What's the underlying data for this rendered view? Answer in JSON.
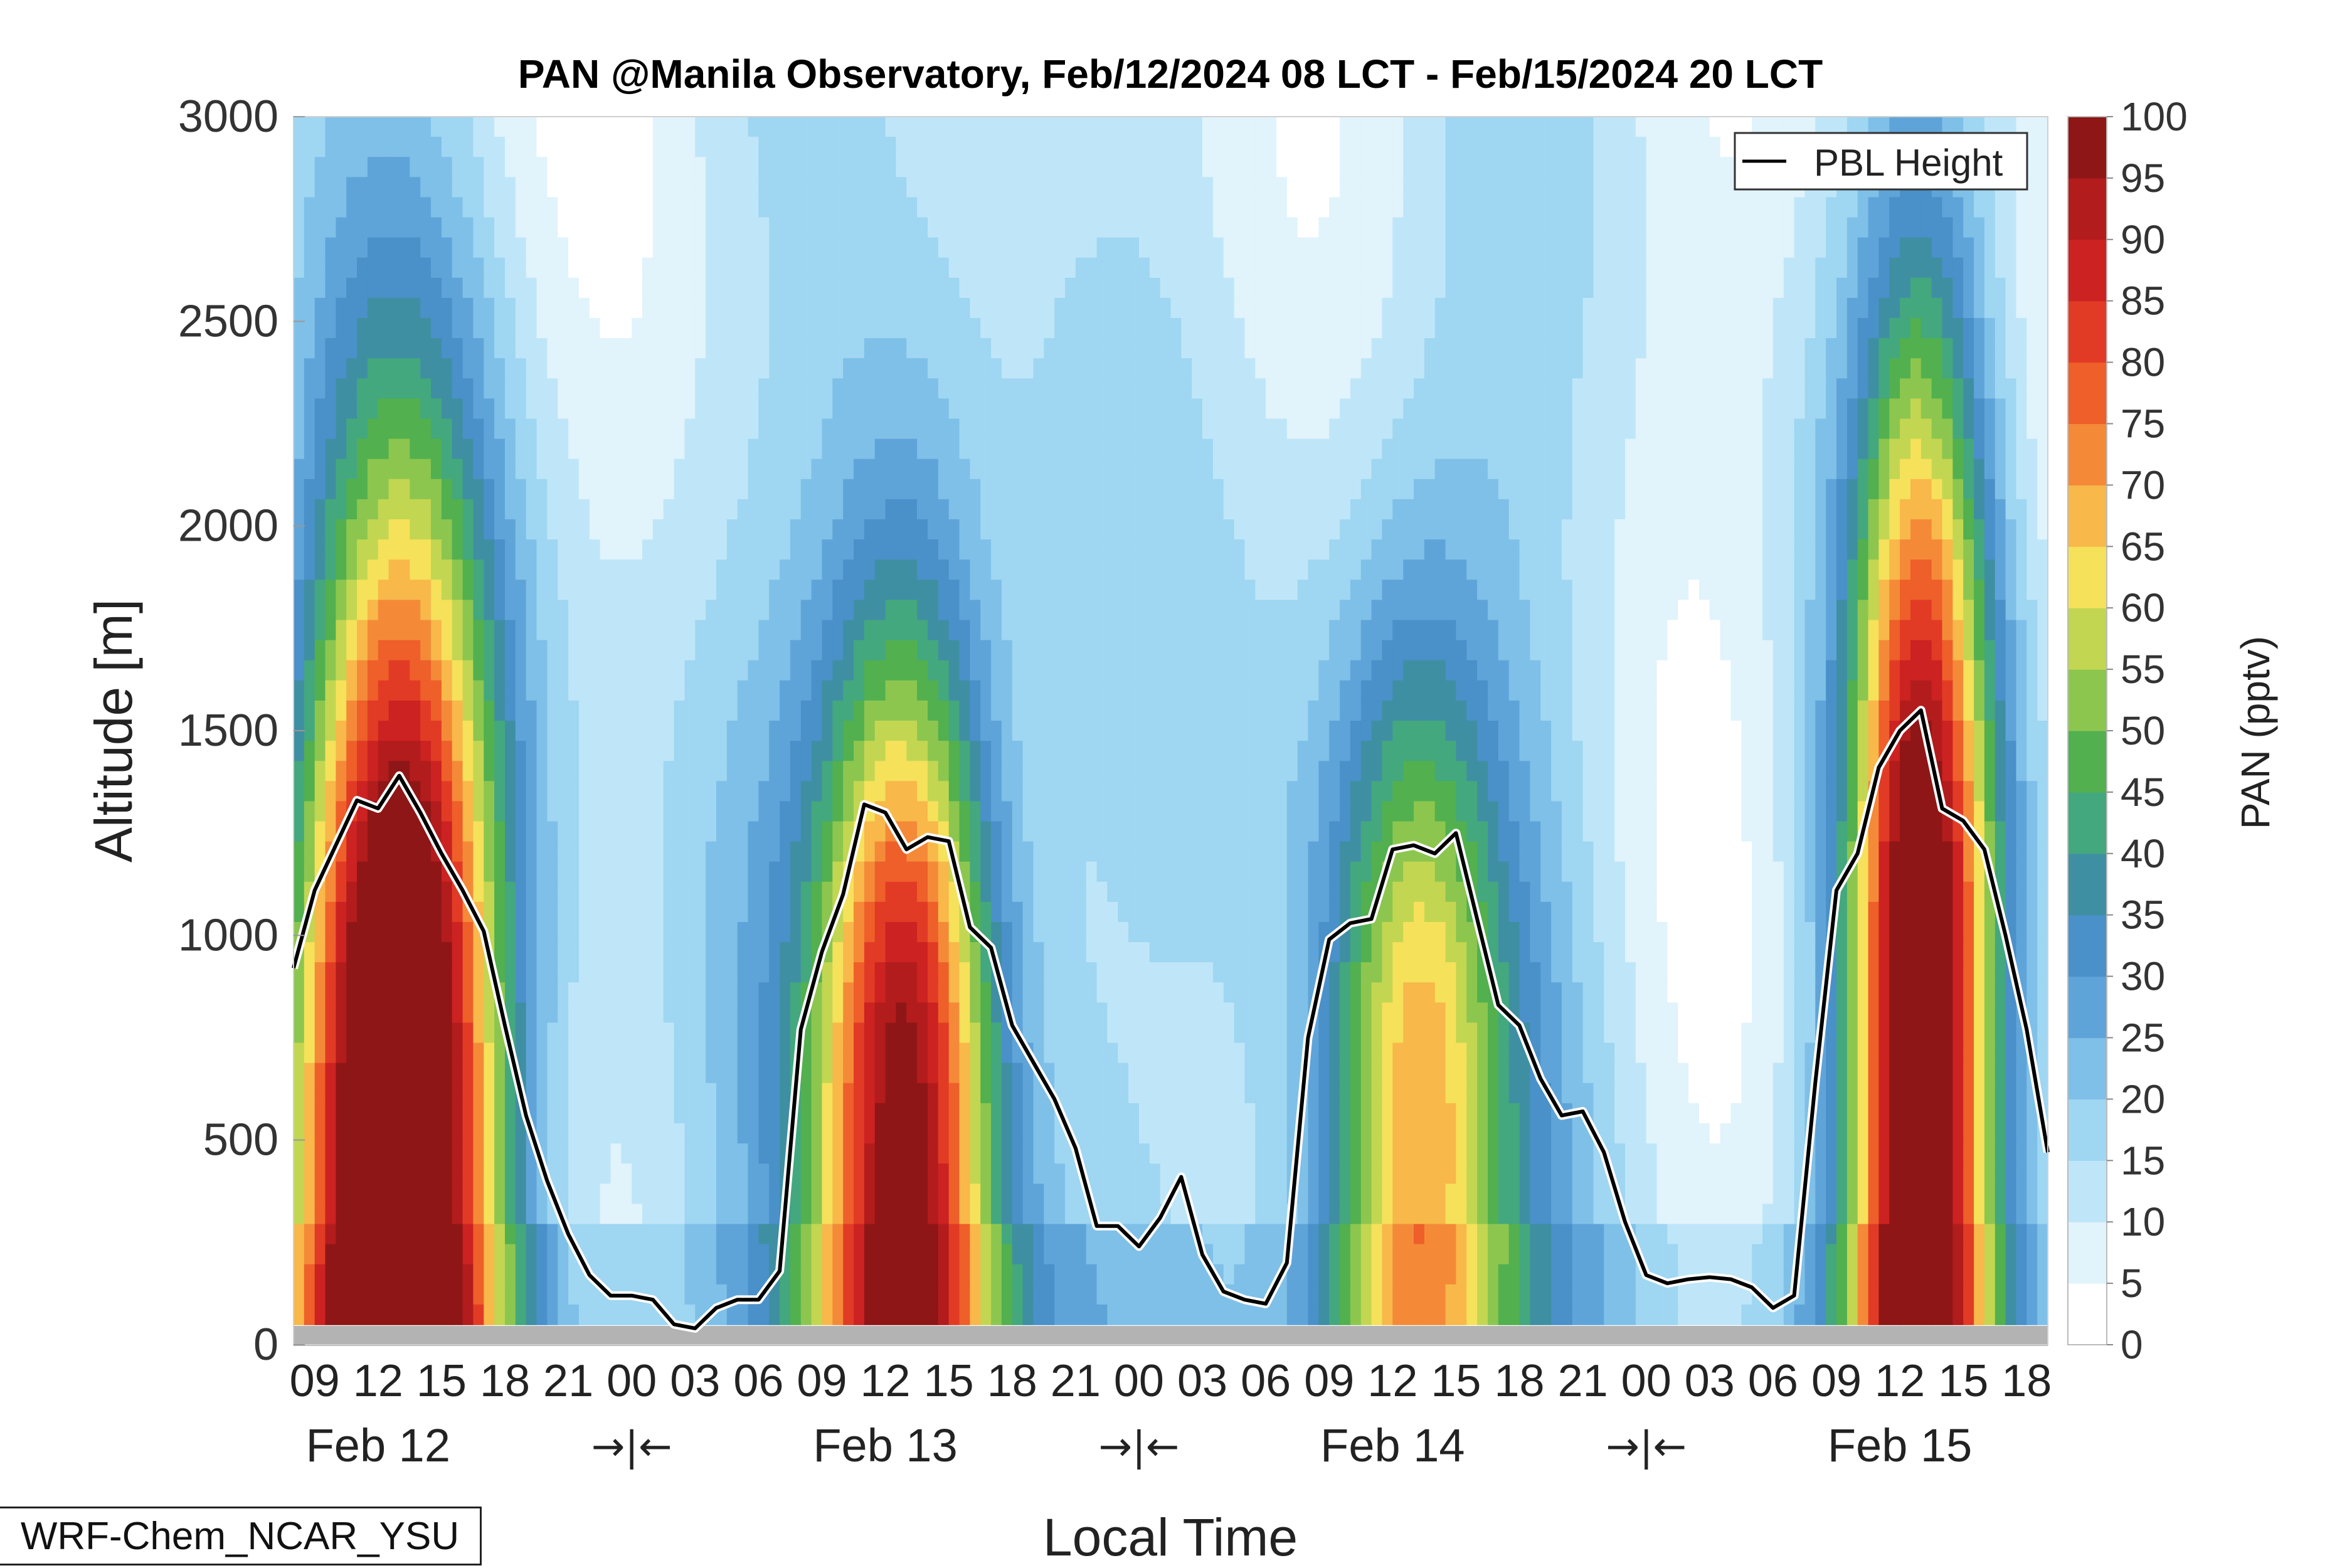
{
  "chart_data": {
    "type": "heatmap",
    "title": "PAN @Manila Observatory, Feb/12/2024 08 LCT - Feb/15/2024 20 LCT",
    "xlabel": "Local Time",
    "ylabel": "Altitude [m]",
    "ylim": [
      0,
      3000
    ],
    "yticks": [
      0,
      500,
      1000,
      1500,
      2000,
      2500,
      3000
    ],
    "hour_ticks": [
      "09",
      "12",
      "15",
      "18",
      "21",
      "00",
      "03",
      "06",
      "09",
      "12",
      "15",
      "18",
      "21",
      "00",
      "03",
      "06",
      "09",
      "12",
      "15",
      "18",
      "21",
      "00",
      "03",
      "06",
      "09",
      "12",
      "15",
      "18"
    ],
    "hour_tick_values": [
      1,
      4,
      7,
      10,
      13,
      16,
      19,
      22,
      25,
      28,
      31,
      34,
      37,
      40,
      43,
      46,
      49,
      52,
      55,
      58,
      61,
      64,
      67,
      70,
      73,
      76,
      79,
      82
    ],
    "day_labels": [
      {
        "label": "Feb 12",
        "at": 4
      },
      {
        "label": "Feb 13",
        "at": 28
      },
      {
        "label": "Feb 14",
        "at": 52
      },
      {
        "label": "Feb 15",
        "at": 76
      }
    ],
    "midnight_markers": [
      {
        "label": "→|←",
        "at": 16
      },
      {
        "label": "→|←",
        "at": 40
      },
      {
        "label": "→|←",
        "at": 64
      }
    ],
    "colorbar": {
      "label": "PAN (pptv)",
      "ticks": [
        "0",
        "5",
        "10",
        "15",
        "20",
        "25",
        "30",
        "35",
        "40",
        "45",
        "50",
        "55",
        "60",
        "65",
        "70",
        "75",
        "80",
        "85",
        "90",
        "95",
        "100"
      ],
      "levels": [
        0,
        5,
        10,
        15,
        20,
        25,
        30,
        35,
        40,
        45,
        50,
        55,
        60,
        65,
        70,
        75,
        80,
        85,
        90,
        95,
        100
      ],
      "colors": [
        "#ffffff",
        "#e1f3fb",
        "#bfe6f8",
        "#9fd6f2",
        "#7fc0e8",
        "#5fa4d9",
        "#4a90c9",
        "#3f8fa3",
        "#43a87e",
        "#52b04f",
        "#8cc64f",
        "#c3d651",
        "#f6e15a",
        "#f8b84a",
        "#f48a38",
        "#ee5f2a",
        "#e23b25",
        "#cc2222",
        "#b31c1c",
        "#8f1616"
      ]
    },
    "series": [
      {
        "name": "PBL Height",
        "type": "line",
        "color": "#000000",
        "x": [
          0,
          1,
          2,
          3,
          4,
          5,
          6,
          7,
          8,
          9,
          10,
          11,
          12,
          13,
          14,
          15,
          16,
          17,
          18,
          19,
          20,
          21,
          22,
          23,
          24,
          25,
          26,
          27,
          28,
          29,
          30,
          31,
          32,
          33,
          34,
          35,
          36,
          37,
          38,
          39,
          40,
          41,
          42,
          43,
          44,
          45,
          46,
          47,
          48,
          49,
          50,
          51,
          52,
          53,
          54,
          55,
          56,
          57,
          58,
          59,
          60,
          61,
          62,
          63,
          64,
          65,
          66,
          67,
          68,
          69,
          70,
          71,
          72,
          73,
          74,
          75,
          76,
          77,
          78,
          79,
          80,
          81,
          82,
          83
        ],
        "y": [
          920,
          1110,
          1220,
          1330,
          1310,
          1390,
          1300,
          1200,
          1110,
          1010,
          780,
          560,
          400,
          270,
          170,
          120,
          120,
          110,
          50,
          40,
          90,
          110,
          110,
          180,
          770,
          960,
          1100,
          1320,
          1300,
          1210,
          1240,
          1230,
          1020,
          970,
          780,
          690,
          600,
          480,
          290,
          290,
          240,
          310,
          410,
          220,
          130,
          110,
          100,
          200,
          750,
          990,
          1030,
          1040,
          1210,
          1220,
          1200,
          1250,
          1040,
          830,
          780,
          650,
          560,
          570,
          470,
          300,
          170,
          150,
          160,
          165,
          160,
          140,
          90,
          120,
          640,
          1110,
          1200,
          1410,
          1500,
          1550,
          1310,
          1280,
          1210,
          1000,
          770,
          470
        ]
      }
    ],
    "legend": {
      "entries": [
        "PBL Height"
      ],
      "placement": "top-right"
    },
    "footer_label": "WRF-Chem_NCAR_YSU"
  }
}
